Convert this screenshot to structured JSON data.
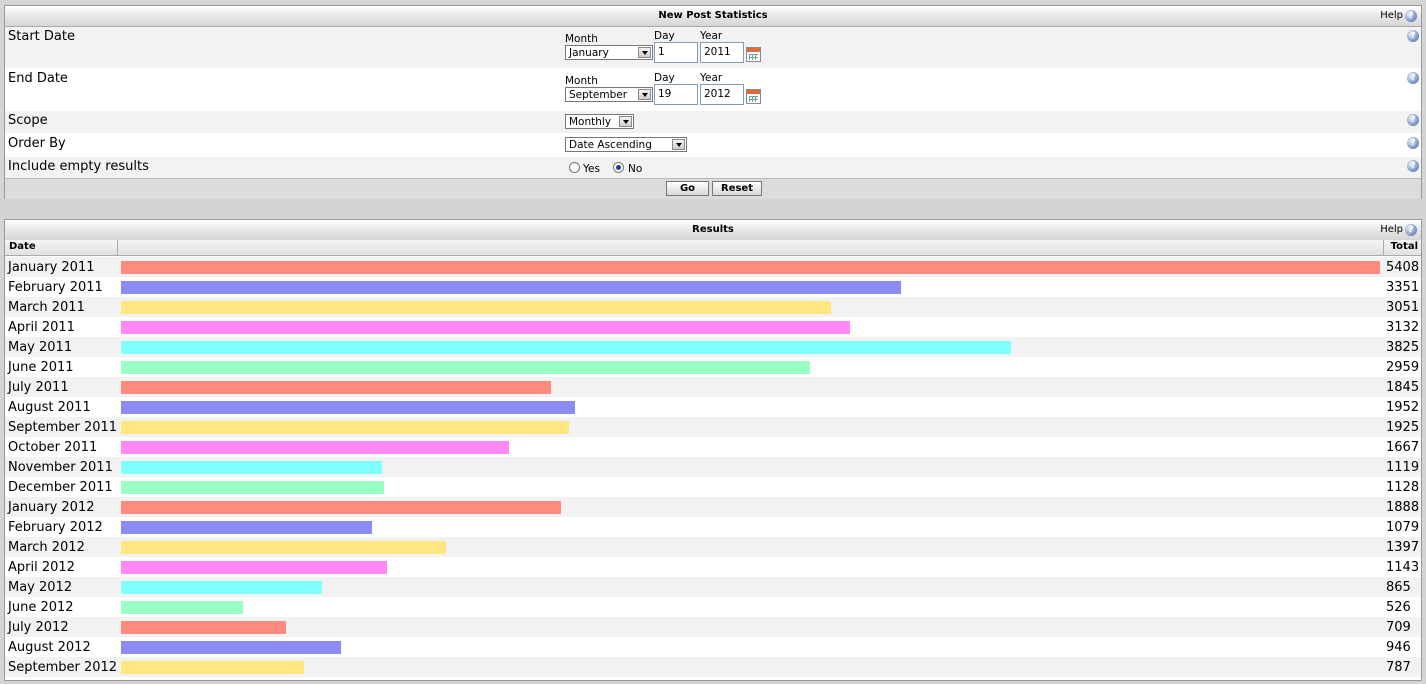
{
  "stats": {
    "title": "New Post Statistics",
    "help": "Help",
    "start_label": "Start Date",
    "end_label": "End Date",
    "month_cap": "Month",
    "day_cap": "Day",
    "year_cap": "Year",
    "start": {
      "month": "January",
      "day": "1",
      "year": "2011"
    },
    "end": {
      "month": "September",
      "day": "19",
      "year": "2012"
    },
    "scope_label": "Scope",
    "scope_value": "Monthly",
    "order_label": "Order By",
    "order_value": "Date Ascending",
    "empty_label": "Include empty results",
    "yes": "Yes",
    "no": "No",
    "empty_selected": "No",
    "go": "Go",
    "reset": "Reset"
  },
  "results": {
    "title": "Results",
    "help": "Help",
    "col_date": "Date",
    "col_total": "Total",
    "max": 5408,
    "colors": [
      "#ff8a80",
      "#8c8cf5",
      "#ffe680",
      "#ff88f5",
      "#80ffff",
      "#99ffc4"
    ],
    "rows": [
      {
        "date": "January 2011",
        "total": 5408
      },
      {
        "date": "February 2011",
        "total": 3351
      },
      {
        "date": "March 2011",
        "total": 3051
      },
      {
        "date": "April 2011",
        "total": 3132
      },
      {
        "date": "May 2011",
        "total": 3825
      },
      {
        "date": "June 2011",
        "total": 2959
      },
      {
        "date": "July 2011",
        "total": 1845
      },
      {
        "date": "August 2011",
        "total": 1952
      },
      {
        "date": "September 2011",
        "total": 1925
      },
      {
        "date": "October 2011",
        "total": 1667
      },
      {
        "date": "November 2011",
        "total": 1119
      },
      {
        "date": "December 2011",
        "total": 1128
      },
      {
        "date": "January 2012",
        "total": 1888
      },
      {
        "date": "February 2012",
        "total": 1079
      },
      {
        "date": "March 2012",
        "total": 1397
      },
      {
        "date": "April 2012",
        "total": 1143
      },
      {
        "date": "May 2012",
        "total": 865
      },
      {
        "date": "June 2012",
        "total": 526
      },
      {
        "date": "July 2012",
        "total": 709
      },
      {
        "date": "August 2012",
        "total": 946
      },
      {
        "date": "September 2012",
        "total": 787
      }
    ]
  }
}
